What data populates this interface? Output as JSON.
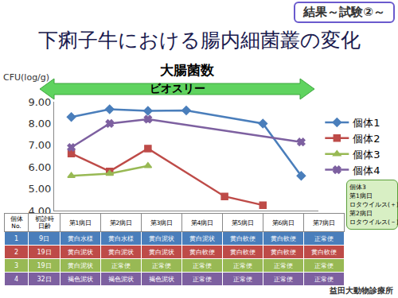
{
  "header": {
    "title": "下痢子牛における腸内細菌叢の変化",
    "badge": "結果～試験②～"
  },
  "chart_data": {
    "type": "line",
    "title": "大腸菌数",
    "y_label": "CFU(log/g)",
    "arrow_label": "ビオスリー",
    "categories": [
      "第1病日",
      "第2病日",
      "第3病日",
      "第4病日",
      "第5病日",
      "第6病日",
      "第7病日"
    ],
    "series": [
      {
        "name": "個体1",
        "color": "#4a7ebb",
        "marker": "diamond",
        "line_style": "solid",
        "values": [
          8.3,
          8.65,
          8.58,
          8.6,
          null,
          8.0,
          5.6
        ]
      },
      {
        "name": "個体2",
        "color": "#be4b48",
        "marker": "square",
        "line_style": "solid",
        "values": [
          6.62,
          5.8,
          6.85,
          null,
          4.65,
          4.25,
          null
        ]
      },
      {
        "name": "個体3",
        "color": "#98b954",
        "marker": "triangle-up",
        "line_style": "solid",
        "values": [
          5.6,
          5.7,
          6.05,
          null,
          null,
          null,
          null
        ]
      },
      {
        "name": "個体4",
        "color": "#7d60a0",
        "marker": "x",
        "line_style": "solid",
        "values": [
          6.9,
          8.0,
          8.2,
          null,
          null,
          null,
          7.15
        ]
      }
    ],
    "ylim": [
      4,
      9
    ],
    "yticks": [
      {
        "value": 4,
        "label": "4.00"
      },
      {
        "value": 5,
        "label": "5.00"
      },
      {
        "value": 6,
        "label": "6.00"
      },
      {
        "value": 7,
        "label": "7.00"
      },
      {
        "value": 8,
        "label": "8.00"
      },
      {
        "value": 9,
        "label": "9.00"
      }
    ],
    "grid": false,
    "legend": "right",
    "tick_labels": "y"
  },
  "table": {
    "header": [
      "個体\nNo.",
      "初診時\n日齢"
    ],
    "rows": [
      [
        "1",
        "9日",
        "黄白水様",
        "黄白水様",
        "黄白泥状",
        "黄白泥状",
        "黄白軟便",
        "黄白軟便",
        "正常便"
      ],
      [
        "2",
        "19日",
        "黄白泥状",
        "黄白泥状",
        "黄白泥状",
        "黄白軟便",
        "黄白軟便",
        "黄白軟便",
        "黄白軟便"
      ],
      [
        "3",
        "19日",
        "黄白泥状",
        "正常便",
        "正常便",
        "正常便",
        "正常便",
        "正常便",
        "正常便"
      ],
      [
        "4",
        "32日",
        "褐色泥状",
        "褐色泥状",
        "褐色泥状",
        "正常便",
        "正常便",
        "正常便",
        "正常便"
      ]
    ]
  },
  "note": [
    "個体3",
    "第1病日",
    "ロタウイルス(＋)",
    "第2病日",
    "ロタウイルス(－)"
  ],
  "footer": "益田大動物診療所"
}
